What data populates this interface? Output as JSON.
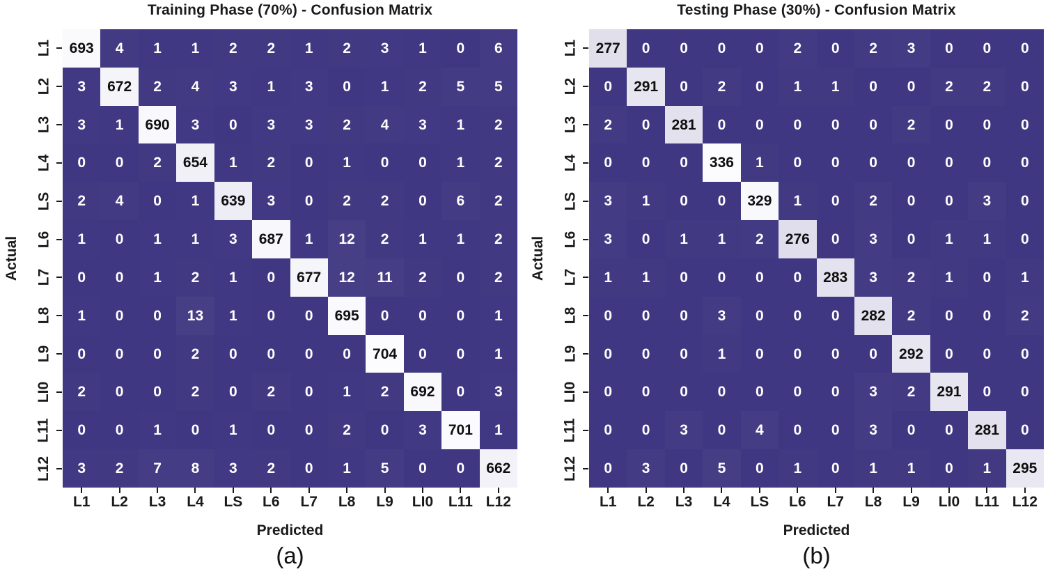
{
  "figure": {
    "background": "#ffffff",
    "colors": {
      "cell_low": "#3f3781",
      "cell_high": "#fcfbfe",
      "text_on_dark": "#ffffff",
      "text_on_light": "#0f0f0f",
      "axis_text": "#1a1a1a"
    }
  },
  "chart_data": [
    {
      "type": "heatmap",
      "title": "Training Phase (70%) - Confusion Matrix",
      "xlabel": "Predicted",
      "ylabel": "Actual",
      "caption": "(a)",
      "x_tick_labels": [
        "L1",
        "L2",
        "L3",
        "L4",
        "LS",
        "L6",
        "L7",
        "L8",
        "L9",
        "LI0",
        "L11",
        "L12"
      ],
      "y_tick_labels": [
        "L1",
        "L2",
        "L3",
        "L4",
        "LS",
        "L6",
        "L7",
        "L8",
        "L9",
        "LI0",
        "L11",
        "L12"
      ],
      "vmin": 0,
      "vmax": 704,
      "matrix": [
        [
          693,
          4,
          1,
          1,
          2,
          2,
          1,
          2,
          3,
          1,
          0,
          6
        ],
        [
          3,
          672,
          2,
          4,
          3,
          1,
          3,
          0,
          1,
          2,
          5,
          5
        ],
        [
          3,
          1,
          690,
          3,
          0,
          3,
          3,
          2,
          4,
          3,
          1,
          2
        ],
        [
          0,
          0,
          2,
          654,
          1,
          2,
          0,
          1,
          0,
          0,
          1,
          2
        ],
        [
          2,
          4,
          0,
          1,
          639,
          3,
          0,
          2,
          2,
          0,
          6,
          2
        ],
        [
          1,
          0,
          1,
          1,
          3,
          687,
          1,
          12,
          2,
          1,
          1,
          2
        ],
        [
          0,
          0,
          1,
          2,
          1,
          0,
          677,
          12,
          11,
          2,
          0,
          2
        ],
        [
          1,
          0,
          0,
          13,
          1,
          0,
          0,
          695,
          0,
          0,
          0,
          1
        ],
        [
          0,
          0,
          0,
          2,
          0,
          0,
          0,
          0,
          704,
          0,
          0,
          1
        ],
        [
          2,
          0,
          0,
          2,
          0,
          2,
          0,
          1,
          2,
          692,
          0,
          3
        ],
        [
          0,
          0,
          1,
          0,
          1,
          0,
          0,
          2,
          0,
          3,
          701,
          1
        ],
        [
          3,
          2,
          7,
          8,
          3,
          2,
          0,
          1,
          5,
          0,
          0,
          662
        ]
      ]
    },
    {
      "type": "heatmap",
      "title": "Testing Phase (30%) - Confusion Matrix",
      "xlabel": "Predicted",
      "ylabel": "Actual",
      "caption": "(b)",
      "x_tick_labels": [
        "L1",
        "L2",
        "L3",
        "L4",
        "LS",
        "L6",
        "L7",
        "L8",
        "L9",
        "LI0",
        "L11",
        "L12"
      ],
      "y_tick_labels": [
        "L1",
        "L2",
        "L3",
        "L4",
        "LS",
        "L6",
        "L7",
        "L8",
        "L9",
        "LI0",
        "L11",
        "L12"
      ],
      "vmin": 0,
      "vmax": 336,
      "matrix": [
        [
          277,
          0,
          0,
          0,
          0,
          2,
          0,
          2,
          3,
          0,
          0,
          0
        ],
        [
          0,
          291,
          0,
          2,
          0,
          1,
          1,
          0,
          0,
          2,
          2,
          0
        ],
        [
          2,
          0,
          281,
          0,
          0,
          0,
          0,
          0,
          2,
          0,
          0,
          0
        ],
        [
          0,
          0,
          0,
          336,
          1,
          0,
          0,
          0,
          0,
          0,
          0,
          0
        ],
        [
          3,
          1,
          0,
          0,
          329,
          1,
          0,
          2,
          0,
          0,
          3,
          0
        ],
        [
          3,
          0,
          1,
          1,
          2,
          276,
          0,
          3,
          0,
          1,
          1,
          0
        ],
        [
          1,
          1,
          0,
          0,
          0,
          0,
          283,
          3,
          2,
          1,
          0,
          1
        ],
        [
          0,
          0,
          0,
          3,
          0,
          0,
          0,
          282,
          2,
          0,
          0,
          2
        ],
        [
          0,
          0,
          0,
          1,
          0,
          0,
          0,
          0,
          292,
          0,
          0,
          0
        ],
        [
          0,
          0,
          0,
          0,
          0,
          0,
          0,
          3,
          2,
          291,
          0,
          0
        ],
        [
          0,
          0,
          3,
          0,
          4,
          0,
          0,
          3,
          0,
          0,
          281,
          0
        ],
        [
          0,
          3,
          0,
          5,
          0,
          1,
          0,
          1,
          1,
          0,
          1,
          295
        ]
      ]
    }
  ]
}
